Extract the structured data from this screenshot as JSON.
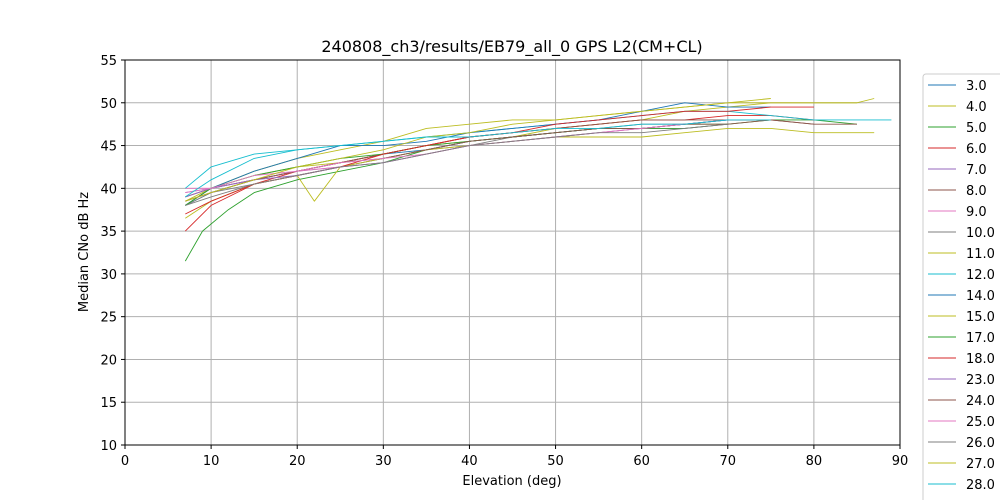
{
  "chart_data": {
    "type": "line",
    "title": "240808_ch3/results/EB79_all_0 GPS L2(CM+CL)",
    "xlabel": "Elevation (deg)",
    "ylabel": "Median CNo dB Hz",
    "xlim": [
      0,
      90
    ],
    "ylim": [
      10,
      55
    ],
    "xticks": [
      0,
      10,
      20,
      30,
      40,
      50,
      60,
      70,
      80,
      90
    ],
    "yticks": [
      10,
      15,
      20,
      25,
      30,
      35,
      40,
      45,
      50,
      55
    ],
    "grid": true,
    "legend_position": "right",
    "colors": [
      "#1f77b4",
      "#bcbd22",
      "#2ca02c",
      "#d62728",
      "#9467bd",
      "#8c564b",
      "#e377c2",
      "#7f7f7f",
      "#bcbd22",
      "#17becf"
    ],
    "series": [
      {
        "name": "3.0",
        "x": [
          7,
          10,
          15,
          20,
          25,
          30,
          35,
          40,
          45,
          50,
          55,
          60,
          65,
          70,
          75
        ],
        "values": [
          38,
          39.5,
          41,
          42,
          43,
          44,
          44.5,
          45.5,
          46,
          46.5,
          47,
          47,
          47.5,
          48,
          48
        ]
      },
      {
        "name": "4.0",
        "x": [
          7,
          10,
          15,
          20,
          25,
          30,
          35,
          40,
          45,
          50,
          55,
          60,
          65,
          70,
          75,
          80,
          85,
          87
        ],
        "values": [
          38.5,
          40,
          41.5,
          42.5,
          43,
          44,
          45,
          45.5,
          46,
          47,
          47.5,
          48,
          49,
          49.5,
          50,
          50,
          50,
          50.5
        ]
      },
      {
        "name": "5.0",
        "x": [
          7,
          9,
          12,
          15,
          20,
          25,
          30,
          35,
          40,
          45,
          50,
          55,
          60,
          65,
          70,
          75,
          80,
          85
        ],
        "values": [
          31.5,
          35,
          37.5,
          39.5,
          41,
          42,
          43,
          44.5,
          45.5,
          46,
          46.5,
          47,
          47,
          47.5,
          47.5,
          48,
          48,
          47.5
        ]
      },
      {
        "name": "6.0",
        "x": [
          7,
          10,
          15,
          20,
          25,
          30,
          35,
          40,
          45,
          50,
          55,
          60,
          65,
          70,
          75,
          80
        ],
        "values": [
          35,
          38,
          40.5,
          42,
          43,
          44,
          45,
          46,
          46.5,
          47,
          47.5,
          48,
          48,
          48.5,
          48.5,
          48
        ]
      },
      {
        "name": "7.0",
        "x": [
          7,
          10,
          15,
          20,
          25,
          30,
          35,
          40,
          45,
          50,
          55,
          60,
          65,
          70,
          75
        ],
        "values": [
          39.5,
          40,
          41,
          42,
          42.5,
          43.5,
          44.5,
          45.5,
          46,
          46.5,
          47,
          47,
          47.5,
          48,
          48
        ]
      },
      {
        "name": "8.0",
        "x": [
          7,
          10,
          15,
          20,
          25,
          30,
          35,
          40,
          45,
          50,
          55,
          60,
          65,
          70,
          75,
          80,
          85
        ],
        "values": [
          39,
          40,
          41,
          42,
          43,
          44,
          45,
          46,
          46.5,
          47,
          47.5,
          48,
          48,
          48,
          48,
          47.5,
          47.5
        ]
      },
      {
        "name": "9.0",
        "x": [
          7,
          10,
          15,
          20,
          25,
          30,
          35,
          40,
          45,
          50,
          55,
          60,
          65,
          70
        ],
        "values": [
          40,
          40,
          41,
          42,
          42.5,
          43,
          44,
          45,
          45.5,
          46,
          46.5,
          47,
          47,
          47.5
        ]
      },
      {
        "name": "10.0",
        "x": [
          7,
          10,
          15,
          20,
          25,
          30,
          35,
          40,
          45,
          50,
          55,
          60,
          65,
          70
        ],
        "values": [
          38,
          39.5,
          40.5,
          41.5,
          42.5,
          43.5,
          44.5,
          45,
          46,
          46.5,
          47,
          47.5,
          47.5,
          48
        ]
      },
      {
        "name": "11.0",
        "x": [
          7,
          10,
          15,
          20,
          25,
          30,
          35,
          40,
          45,
          50,
          55,
          60,
          65,
          70,
          75,
          80,
          85
        ],
        "values": [
          38,
          40,
          42,
          43.5,
          44.5,
          45.5,
          47,
          47.5,
          48,
          48,
          48.5,
          49,
          49.5,
          50,
          50,
          50,
          50
        ]
      },
      {
        "name": "12.0",
        "x": [
          7,
          10,
          15,
          20,
          25,
          30,
          35,
          40,
          45,
          50,
          55,
          60,
          65,
          70,
          75,
          80,
          85,
          89
        ],
        "values": [
          40,
          42.5,
          44,
          44.5,
          45,
          45.5,
          46,
          46.5,
          47,
          47.5,
          48,
          48.5,
          49,
          49,
          48.5,
          48,
          48,
          48
        ]
      },
      {
        "name": "14.0",
        "x": [
          7,
          10,
          15,
          20,
          25,
          30,
          35,
          40,
          45,
          50,
          55,
          60,
          65,
          70,
          75
        ],
        "values": [
          38,
          40,
          42,
          43.5,
          45,
          45,
          45.5,
          46.5,
          47,
          47.5,
          48,
          49,
          50,
          49.5,
          49.5
        ]
      },
      {
        "name": "15.0",
        "x": [
          7,
          10,
          15,
          20,
          22,
          25,
          30,
          35,
          40,
          45,
          50,
          55,
          60,
          65,
          70,
          75,
          80,
          85,
          87
        ],
        "values": [
          36.5,
          38.5,
          40.5,
          41.5,
          38.5,
          42.5,
          43.5,
          44.5,
          45,
          45.5,
          46,
          46,
          46,
          46.5,
          47,
          47,
          46.5,
          46.5,
          46.5
        ]
      },
      {
        "name": "17.0",
        "x": [
          7,
          10,
          15,
          20,
          25,
          30,
          35,
          40,
          45,
          50,
          55,
          60,
          65,
          70
        ],
        "values": [
          38,
          40,
          41.5,
          42.5,
          43.5,
          44,
          45,
          45.5,
          46,
          46.5,
          47,
          47,
          47,
          47.5
        ]
      },
      {
        "name": "18.0",
        "x": [
          7,
          10,
          15,
          20,
          25,
          30,
          35,
          40,
          45,
          50,
          55,
          60,
          65,
          70,
          75,
          80
        ],
        "values": [
          37,
          38.5,
          40.5,
          41.5,
          42.5,
          44,
          45,
          46,
          46.5,
          47.5,
          48,
          48.5,
          49,
          49,
          49.5,
          49.5
        ]
      },
      {
        "name": "23.0",
        "x": [
          7,
          10,
          15,
          20,
          25,
          30,
          35,
          40,
          45,
          50,
          55,
          60,
          65,
          70
        ],
        "values": [
          39,
          40,
          41,
          41.5,
          42.5,
          43,
          44,
          45,
          45.5,
          46,
          46.5,
          47,
          47.5,
          48
        ]
      },
      {
        "name": "24.0",
        "x": [
          7,
          10,
          15,
          20,
          25,
          30,
          35,
          40,
          45,
          50,
          55,
          60,
          65,
          70,
          75,
          80
        ],
        "values": [
          38.5,
          39.5,
          41,
          42,
          43,
          43.5,
          44.5,
          45.5,
          46,
          46.5,
          47,
          47,
          47.5,
          47.5,
          48,
          47.5
        ]
      },
      {
        "name": "25.0",
        "x": [
          7,
          10,
          15,
          20,
          25,
          30,
          35,
          40,
          45,
          50,
          55,
          60,
          65
        ],
        "values": [
          39.5,
          40,
          41.5,
          42,
          43,
          43.5,
          44,
          45,
          45.5,
          46,
          46.5,
          47,
          47.5
        ]
      },
      {
        "name": "26.0",
        "x": [
          7,
          10,
          15,
          20,
          25,
          30,
          35,
          40,
          45,
          50,
          55,
          60,
          65,
          70
        ],
        "values": [
          38,
          39,
          40.5,
          41.5,
          42.5,
          43,
          44,
          45,
          45.5,
          46,
          46.5,
          46.5,
          47,
          47.5
        ]
      },
      {
        "name": "27.0",
        "x": [
          7,
          10,
          15,
          20,
          25,
          30,
          35,
          40,
          45,
          50,
          55,
          60,
          65,
          70,
          75
        ],
        "values": [
          38.5,
          39.5,
          41,
          42.5,
          43.5,
          44.5,
          46,
          46.5,
          47.5,
          48,
          48.5,
          49,
          49.5,
          50,
          50.5
        ]
      },
      {
        "name": "28.0",
        "x": [
          7,
          10,
          15,
          20,
          25,
          30,
          35,
          40,
          45,
          50,
          55,
          60,
          65,
          70,
          75
        ],
        "values": [
          39,
          41,
          43.5,
          44.5,
          45,
          45.5,
          46,
          46,
          46.5,
          47,
          47,
          47.5,
          47.5,
          48,
          48
        ]
      }
    ]
  }
}
